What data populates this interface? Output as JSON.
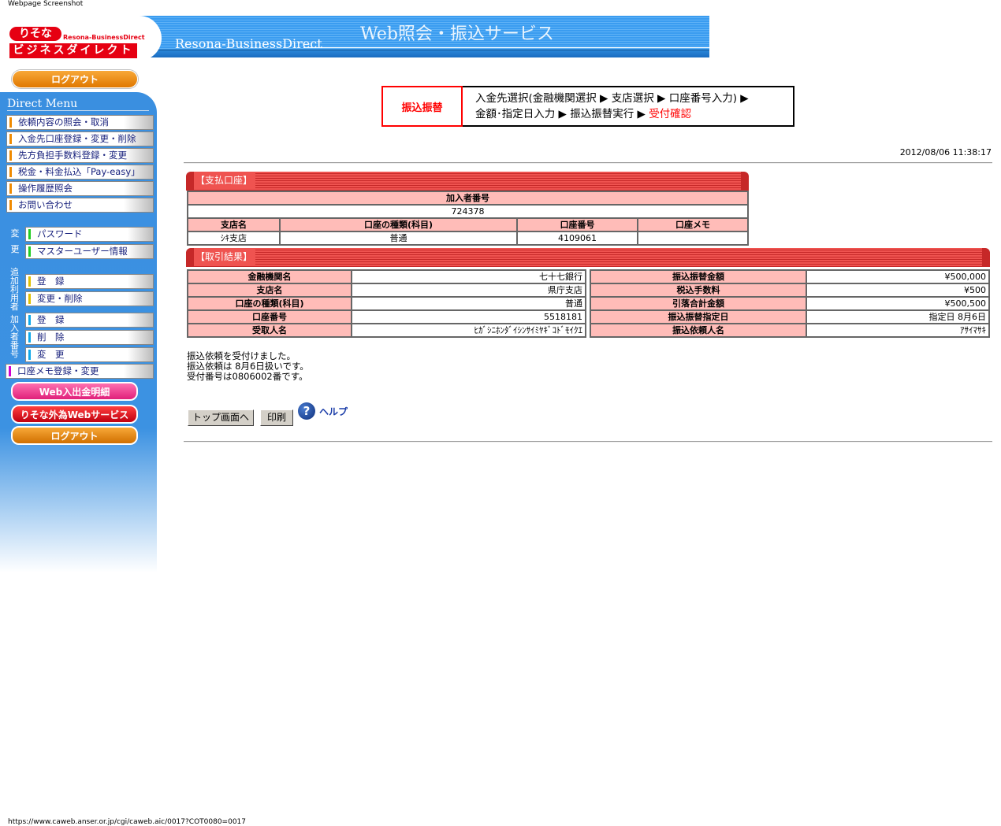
{
  "caption": "Webpage Screenshot",
  "header": {
    "logo_top": "りそな",
    "logo_sub": "Resona-BusinessDirect",
    "logo_bottom": "ビジネスダイレクト",
    "brand": "Resona-BusinessDirect",
    "title": "Web照会・振込サービス"
  },
  "sidebar": {
    "logout": "ログアウト",
    "menu_title": "Direct Menu",
    "items": [
      "依頼内容の照会・取消",
      "入金先口座登録・変更・削除",
      "先方負担手数料登録・変更",
      "税金・料金払込「Pay-easy」",
      "操作履歴照会",
      "お問い合わせ"
    ],
    "change_label": [
      "変",
      "更"
    ],
    "change_items": [
      "パスワード",
      "マスターユーザー情報"
    ],
    "adduser_label": "追加利用者",
    "adduser_items": [
      "登　録",
      "変更・削除"
    ],
    "subscriber_label": "加入者番号",
    "subscriber_items": [
      "登　録",
      "削　除",
      "変　更"
    ],
    "memo": "口座メモ登録・変更",
    "web_statement": "Web入出金明細",
    "forex": "りそな外為Webサービス",
    "logout2": "ログアウト"
  },
  "steps": {
    "category": "振込振替",
    "line1": "入金先選択(金融機関選択 ▶ 支店選択 ▶ 口座番号入力) ▶",
    "line2": "金額･指定日入力 ▶ 振込振替実行 ▶ ",
    "current": "受付確認"
  },
  "timestamp": "2012/08/06 11:38:17",
  "payment": {
    "title": "【支払口座】",
    "subscriber_header": "加入者番号",
    "subscriber": "724378",
    "headers": [
      "支店名",
      "口座の種類(科目)",
      "口座番号",
      "口座メモ"
    ],
    "values": [
      "ｼｷ支店",
      "普通",
      "4109061",
      ""
    ]
  },
  "result": {
    "title": "【取引結果】",
    "left": [
      {
        "label": "金融機関名",
        "value": "七十七銀行"
      },
      {
        "label": "支店名",
        "value": "県庁支店"
      },
      {
        "label": "口座の種類(科目)",
        "value": "普通"
      },
      {
        "label": "口座番号",
        "value": "5518181"
      },
      {
        "label": "受取人名",
        "value": "ﾋｶﾞｼﾆﾎﾝﾀﾞｲｼﾝｻｲﾐﾔｷﾞｺﾄﾞﾓｲｸｴ"
      }
    ],
    "right": [
      {
        "label": "振込振替金額",
        "value": "¥500,000"
      },
      {
        "label": "税込手数料",
        "value": "¥500"
      },
      {
        "label": "引落合計金額",
        "value": "¥500,500"
      },
      {
        "label": "振込振替指定日",
        "value": "指定日 8月6日"
      },
      {
        "label": "振込依頼人名",
        "value": "ｱｻｲﾏｻｷ"
      }
    ]
  },
  "messages": [
    "振込依頼を受付けました。",
    "振込依頼は 8月6日扱いです。",
    "受付番号は0806002番です。"
  ],
  "buttons": {
    "top": "トップ画面へ",
    "print": "印刷",
    "help": "ヘルプ"
  },
  "status_url": "https://www.caweb.anser.or.jp/cgi/caweb.aic/0017?COT0080=0017"
}
